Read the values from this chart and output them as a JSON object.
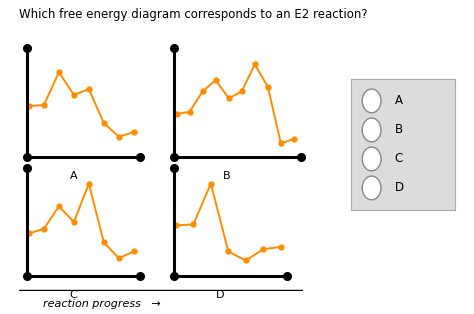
{
  "title": "Which free energy diagram corresponds to an E2 reaction?",
  "title_fontsize": 8.5,
  "line_color": "#FF8C00",
  "marker_color": "#FF8C00",
  "bg_color": "white",
  "diagrams": {
    "A": {
      "x": [
        0,
        1,
        2,
        3,
        4,
        5,
        6,
        7
      ],
      "y": [
        0.45,
        0.46,
        0.75,
        0.55,
        0.6,
        0.3,
        0.18,
        0.22
      ]
    },
    "B": {
      "x": [
        0,
        1,
        2,
        3,
        4,
        5,
        6,
        7,
        8,
        9
      ],
      "y": [
        0.38,
        0.4,
        0.58,
        0.68,
        0.52,
        0.58,
        0.82,
        0.62,
        0.12,
        0.16
      ]
    },
    "C": {
      "x": [
        0,
        1,
        2,
        3,
        4,
        5,
        6,
        7
      ],
      "y": [
        0.38,
        0.42,
        0.62,
        0.48,
        0.82,
        0.3,
        0.16,
        0.22
      ]
    },
    "D": {
      "x": [
        0,
        1,
        2,
        3,
        4,
        5,
        6
      ],
      "y": [
        0.45,
        0.46,
        0.82,
        0.22,
        0.14,
        0.24,
        0.26
      ]
    }
  },
  "positions": {
    "A": [
      0.05,
      0.5,
      0.25,
      0.36
    ],
    "B": [
      0.36,
      0.5,
      0.28,
      0.36
    ],
    "C": [
      0.05,
      0.12,
      0.25,
      0.36
    ],
    "D": [
      0.36,
      0.12,
      0.25,
      0.36
    ]
  },
  "radio_labels": [
    "A",
    "B",
    "C",
    "D"
  ],
  "reaction_progress_label": "reaction progress",
  "arrow": "→",
  "line_lw": 1.4,
  "marker_size": 3.5
}
